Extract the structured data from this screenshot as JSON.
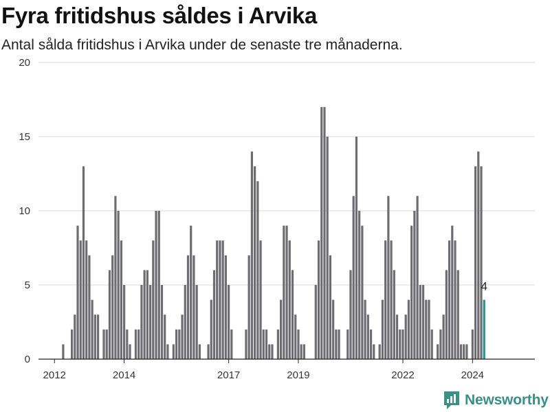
{
  "header": {
    "title": "Fyra fritidshus såldes i Arvika",
    "subtitle": "Antal sålda fritidshus i Arvika under de senaste tre månaderna."
  },
  "brand": {
    "name": "Newsworthy",
    "icon": "newsworthy-logo-icon",
    "color": "#3a8f86"
  },
  "chart_data": {
    "type": "bar",
    "title": "Fyra fritidshus såldes i Arvika",
    "subtitle": "Antal sålda fritidshus i Arvika under de senaste tre månaderna.",
    "ylim": [
      0,
      20
    ],
    "yticks": [
      0,
      5,
      10,
      15,
      20
    ],
    "x_start": "2011-08",
    "x_tick_labels": [
      {
        "label": "2012",
        "month": "2012-01"
      },
      {
        "label": "2014",
        "month": "2014-01"
      },
      {
        "label": "2017",
        "month": "2017-01"
      },
      {
        "label": "2019",
        "month": "2019-01"
      },
      {
        "label": "2022",
        "month": "2022-01"
      },
      {
        "label": "2024",
        "month": "2024-01"
      }
    ],
    "values": [
      null,
      null,
      null,
      null,
      null,
      null,
      null,
      null,
      1,
      null,
      null,
      2,
      3,
      9,
      8,
      13,
      8,
      7,
      4,
      3,
      3,
      null,
      2,
      2,
      6,
      7,
      11,
      10,
      8,
      5,
      2,
      1,
      null,
      2,
      2,
      5,
      6,
      6,
      5,
      8,
      10,
      10,
      5,
      3,
      1,
      null,
      1,
      2,
      2,
      3,
      5,
      7,
      9,
      7,
      5,
      1,
      null,
      null,
      1,
      4,
      6,
      8,
      8,
      8,
      7,
      5,
      2,
      null,
      null,
      null,
      null,
      2,
      7,
      14,
      13,
      12,
      8,
      2,
      2,
      1,
      1,
      null,
      2,
      4,
      9,
      9,
      8,
      6,
      3,
      2,
      1,
      1,
      null,
      null,
      null,
      5,
      8,
      17,
      17,
      15,
      7,
      4,
      2,
      2,
      null,
      null,
      2,
      6,
      11,
      15,
      10,
      9,
      4,
      3,
      2,
      1,
      null,
      1,
      4,
      8,
      11,
      8,
      6,
      3,
      2,
      2,
      3,
      4,
      9,
      10,
      11,
      5,
      5,
      4,
      4,
      2,
      null,
      1,
      2,
      3,
      6,
      8,
      9,
      8,
      6,
      1,
      1,
      1,
      null,
      2,
      13,
      14,
      13,
      4
    ],
    "highlight_last": true,
    "bar_color": "#6d6c70",
    "highlight_color": "#23948c",
    "last_label": "4",
    "grid": true,
    "legend": "none"
  }
}
